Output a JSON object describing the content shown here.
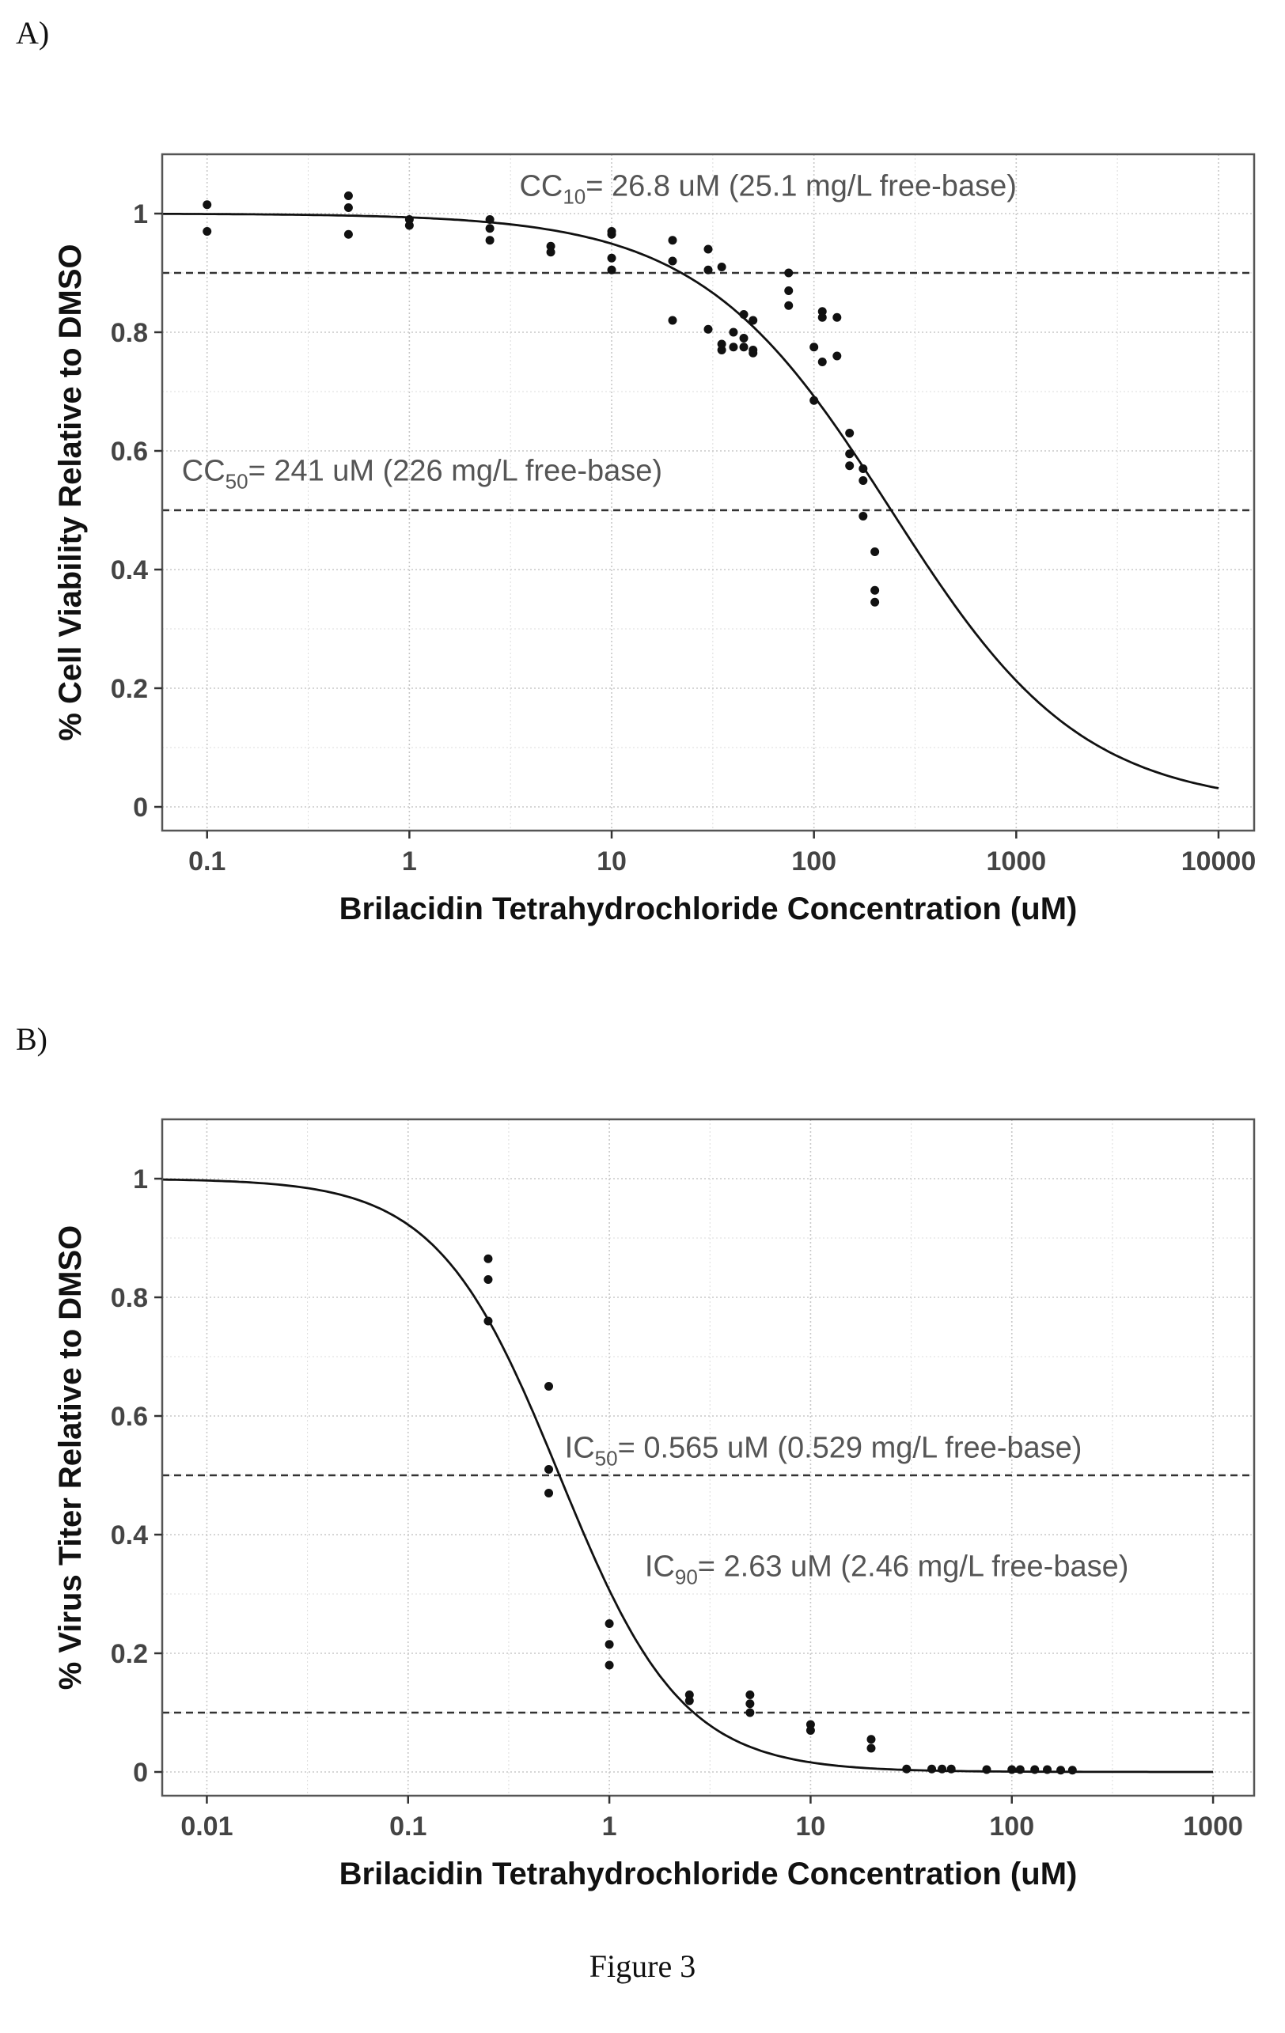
{
  "panels": {
    "a_label": "A)",
    "b_label": "B)"
  },
  "figure_caption": "Figure 3",
  "chart_data": [
    {
      "type": "scatter",
      "xlabel": "Brilacidin Tetrahydrochloride Concentration (uM)",
      "ylabel": "% Cell Viability Relative to DMSO",
      "xscale": "log",
      "xlim": [
        0.06,
        15000
      ],
      "ylim": [
        -0.04,
        1.1
      ],
      "xticks": [
        0.1,
        1,
        10,
        100,
        1000,
        10000
      ],
      "xtick_labels": [
        "0.1",
        "1",
        "10",
        "100",
        "1000",
        "10000"
      ],
      "yticks": [
        0,
        0.2,
        0.4,
        0.6,
        0.8,
        1
      ],
      "ytick_labels": [
        "0",
        "0.2",
        "0.4",
        "0.6",
        "0.8",
        "1"
      ],
      "grid": true,
      "annotations": [
        {
          "prefix": "CC",
          "sub": "10",
          "text": "= 26.8 uM (25.1 mg/L free-base)",
          "x": 3.5,
          "y": 1.03
        },
        {
          "prefix": "CC",
          "sub": "50",
          "text": "= 241 uM (226 mg/L free-base)",
          "x": 0.075,
          "y": 0.55
        }
      ],
      "hlines": [
        0.9,
        0.5
      ],
      "fit": {
        "model": "4PL",
        "top": 1,
        "bottom": 0,
        "ec50": 241,
        "hill": 0.92,
        "x_range": [
          0.06,
          10000
        ]
      },
      "points": [
        [
          0.1,
          1.015
        ],
        [
          0.1,
          0.97
        ],
        [
          0.5,
          1.03
        ],
        [
          0.5,
          1.01
        ],
        [
          0.5,
          0.965
        ],
        [
          1,
          0.99
        ],
        [
          1,
          0.98
        ],
        [
          2.5,
          0.99
        ],
        [
          2.5,
          0.975
        ],
        [
          2.5,
          0.955
        ],
        [
          5,
          0.945
        ],
        [
          5,
          0.935
        ],
        [
          10,
          0.97
        ],
        [
          10,
          0.965
        ],
        [
          10,
          0.925
        ],
        [
          10,
          0.905
        ],
        [
          20,
          0.955
        ],
        [
          20,
          0.92
        ],
        [
          20,
          0.82
        ],
        [
          30,
          0.94
        ],
        [
          30,
          0.905
        ],
        [
          30,
          0.805
        ],
        [
          35,
          0.91
        ],
        [
          35,
          0.78
        ],
        [
          35,
          0.77
        ],
        [
          40,
          0.8
        ],
        [
          40,
          0.775
        ],
        [
          45,
          0.83
        ],
        [
          45,
          0.79
        ],
        [
          45,
          0.775
        ],
        [
          50,
          0.82
        ],
        [
          50,
          0.77
        ],
        [
          50,
          0.765
        ],
        [
          75,
          0.9
        ],
        [
          75,
          0.87
        ],
        [
          75,
          0.845
        ],
        [
          100,
          0.775
        ],
        [
          100,
          0.685
        ],
        [
          110,
          0.835
        ],
        [
          110,
          0.825
        ],
        [
          110,
          0.75
        ],
        [
          130,
          0.825
        ],
        [
          130,
          0.76
        ],
        [
          150,
          0.63
        ],
        [
          150,
          0.595
        ],
        [
          150,
          0.575
        ],
        [
          175,
          0.57
        ],
        [
          175,
          0.55
        ],
        [
          175,
          0.49
        ],
        [
          200,
          0.43
        ],
        [
          200,
          0.365
        ],
        [
          200,
          0.345
        ]
      ]
    },
    {
      "type": "scatter",
      "xlabel": "Brilacidin Tetrahydrochloride Concentration (uM)",
      "ylabel": "% Virus Titer Relative to DMSO",
      "xscale": "log",
      "xlim": [
        0.006,
        1600
      ],
      "ylim": [
        -0.04,
        1.1
      ],
      "xticks": [
        0.01,
        0.1,
        1,
        10,
        100,
        1000
      ],
      "xtick_labels": [
        "0.01",
        "0.1",
        "1",
        "10",
        "100",
        "1000"
      ],
      "yticks": [
        0,
        0.2,
        0.4,
        0.6,
        0.8,
        1
      ],
      "ytick_labels": [
        "0",
        "0.2",
        "0.4",
        "0.6",
        "0.8",
        "1"
      ],
      "grid": true,
      "annotations": [
        {
          "prefix": "IC",
          "sub": "50",
          "text": "= 0.565 uM (0.529 mg/L free-base)",
          "x": 0.6,
          "y": 0.53
        },
        {
          "prefix": "IC",
          "sub": "90",
          "text": "= 2.63 uM (2.46 mg/L free-base)",
          "x": 1.5,
          "y": 0.33
        }
      ],
      "hlines": [
        0.5,
        0.1
      ],
      "fit": {
        "model": "4PL",
        "top": 1,
        "bottom": 0,
        "ec50": 0.565,
        "hill": 1.43,
        "x_range": [
          0.006,
          1000
        ]
      },
      "points": [
        [
          0.25,
          0.865
        ],
        [
          0.25,
          0.83
        ],
        [
          0.25,
          0.76
        ],
        [
          0.5,
          0.65
        ],
        [
          0.5,
          0.51
        ],
        [
          0.5,
          0.47
        ],
        [
          1,
          0.25
        ],
        [
          1,
          0.215
        ],
        [
          1,
          0.18
        ],
        [
          2.5,
          0.13
        ],
        [
          2.5,
          0.12
        ],
        [
          5,
          0.13
        ],
        [
          5,
          0.115
        ],
        [
          5,
          0.1
        ],
        [
          10,
          0.08
        ],
        [
          10,
          0.07
        ],
        [
          20,
          0.055
        ],
        [
          20,
          0.04
        ],
        [
          30,
          0.005
        ],
        [
          40,
          0.005
        ],
        [
          45,
          0.005
        ],
        [
          50,
          0.005
        ],
        [
          75,
          0.004
        ],
        [
          100,
          0.004
        ],
        [
          110,
          0.004
        ],
        [
          130,
          0.004
        ],
        [
          150,
          0.004
        ],
        [
          175,
          0.003
        ],
        [
          200,
          0.003
        ]
      ]
    }
  ]
}
